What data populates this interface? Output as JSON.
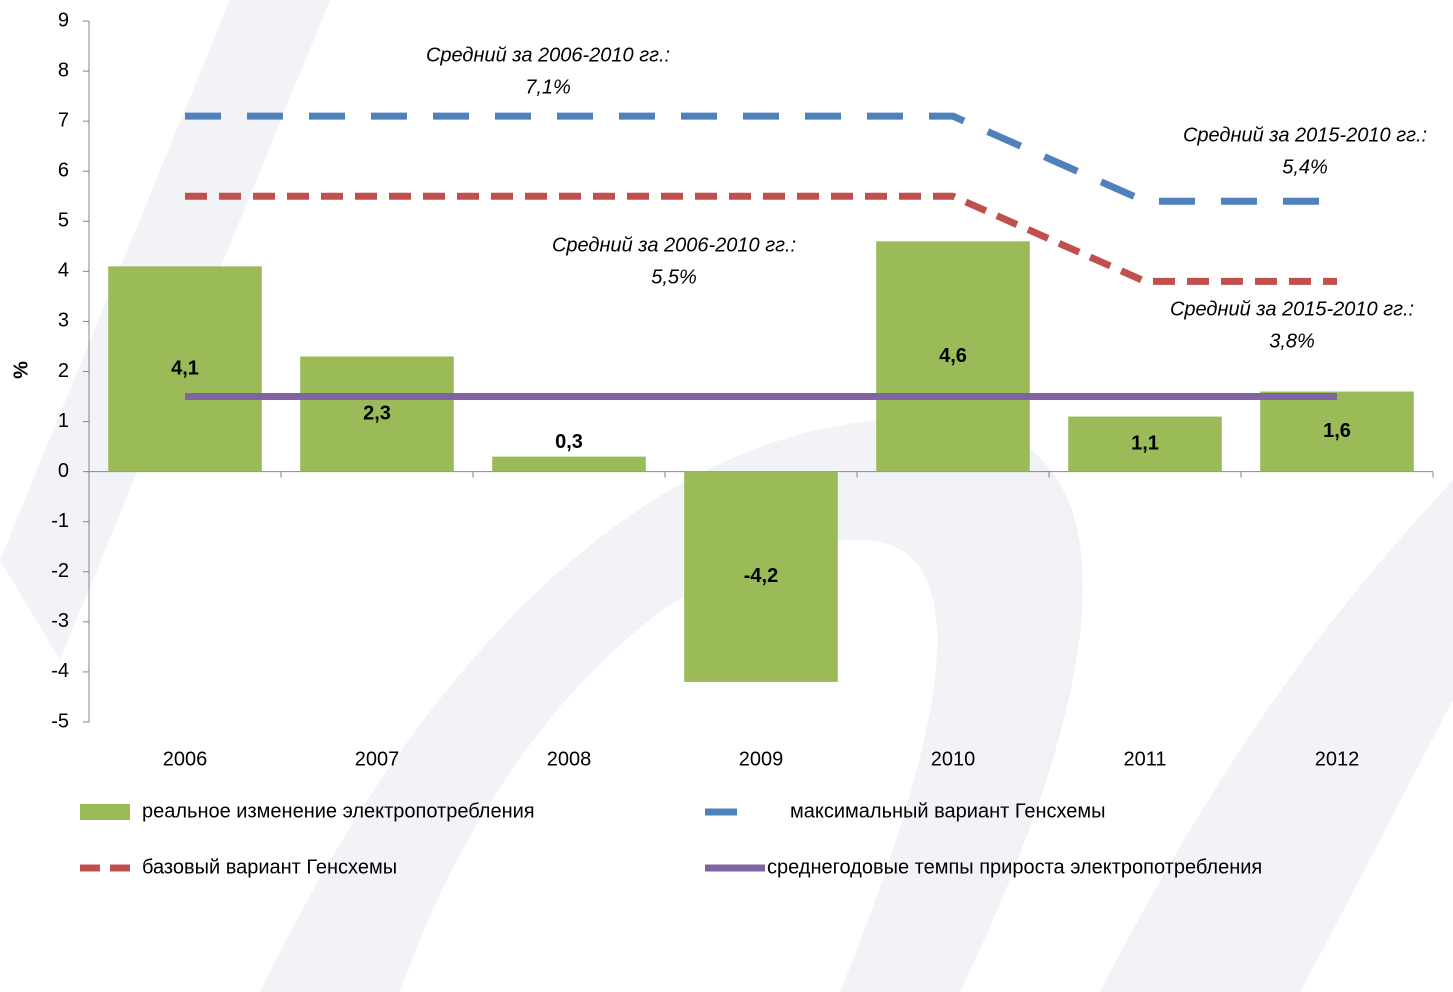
{
  "chart_data": {
    "type": "bar",
    "y_label": "%",
    "categories": [
      "2006",
      "2007",
      "2008",
      "2009",
      "2010",
      "2011",
      "2012"
    ],
    "series": [
      {
        "name": "реальное изменение электропотребления",
        "type": "bar",
        "color": "#9bbb59",
        "values": [
          4.1,
          2.3,
          0.3,
          -4.2,
          4.6,
          1.1,
          1.6
        ],
        "value_labels": [
          "4,1",
          "2,3",
          "0,3",
          "-4,2",
          "4,6",
          "1,1",
          "1,6"
        ]
      },
      {
        "name": "максимальный вариант Генсхемы",
        "type": "line",
        "dash": "dashed",
        "color": "#4f81bd",
        "values": [
          7.1,
          7.1,
          7.1,
          7.1,
          7.1,
          5.4,
          5.4
        ]
      },
      {
        "name": "базовый вариант Генсхемы",
        "type": "line",
        "dash": "dashed",
        "color": "#c0504d",
        "values": [
          5.5,
          5.5,
          5.5,
          5.5,
          5.5,
          3.8,
          3.8
        ]
      },
      {
        "name": "среднегодовые темпы прироста электропотребления",
        "type": "line",
        "dash": "solid",
        "color": "#8064a2",
        "values": [
          1.5,
          1.5,
          1.5,
          1.5,
          1.5,
          1.5,
          1.5
        ]
      }
    ],
    "annotations": [
      {
        "lines": [
          "Средний за 2006-2010 гг.:",
          "7,1%"
        ],
        "color": "#376092"
      },
      {
        "lines": [
          "Средний за 2015-2010 гг.:",
          "5,4%"
        ],
        "color": "#376092"
      },
      {
        "lines": [
          "Средний за 2006-2010 гг.:",
          "5,5%"
        ],
        "color": "#c00000"
      },
      {
        "lines": [
          "Средний за 2015-2010 гг.:",
          "3,8%"
        ],
        "color": "#c00000"
      }
    ],
    "ylim": [
      -5,
      9
    ],
    "yticks": [
      -5,
      -4,
      -3,
      -2,
      -1,
      0,
      1,
      2,
      3,
      4,
      5,
      6,
      7,
      8,
      9
    ],
    "grid": false
  }
}
